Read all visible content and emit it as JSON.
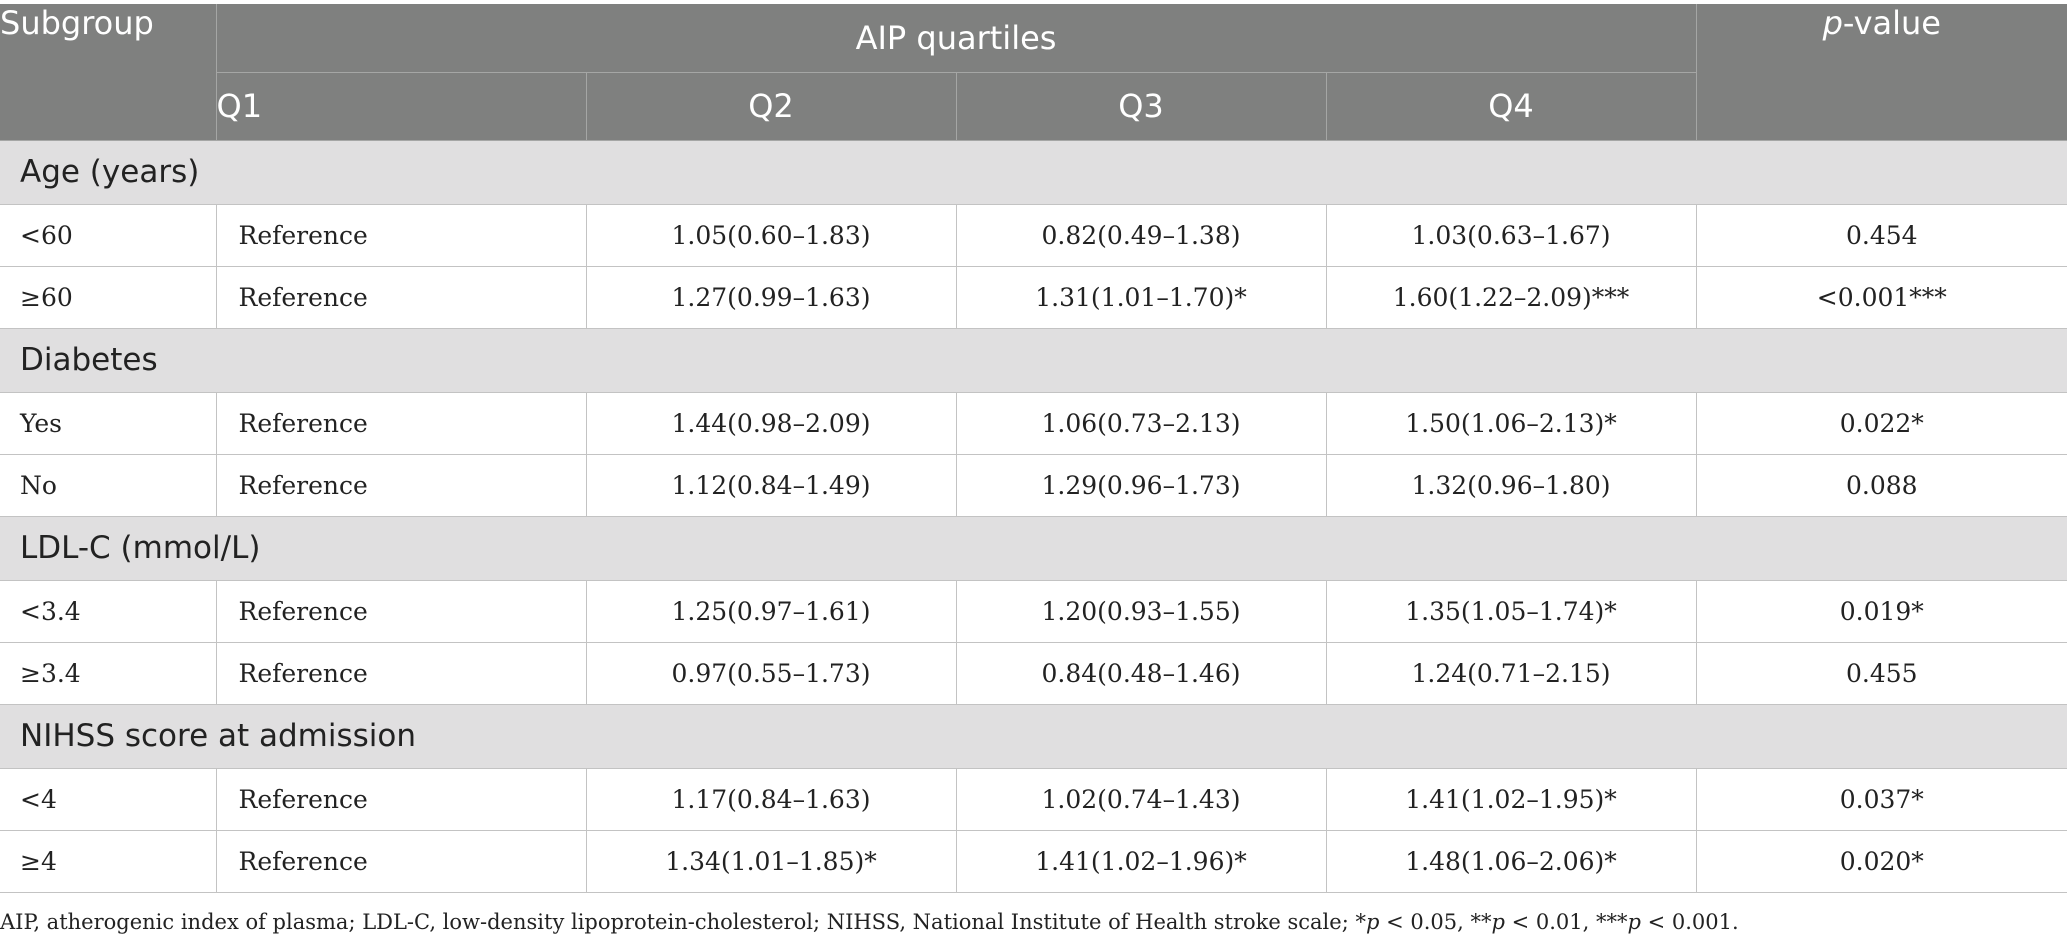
{
  "header": {
    "subgroup": "Subgroup",
    "quartiles": "AIP quartiles",
    "p_prefix": "p",
    "p_suffix": "-value",
    "q1": "Q1",
    "q2": "Q2",
    "q3": "Q3",
    "q4": "Q4"
  },
  "groups": [
    {
      "title": "Age (years)",
      "rows": [
        {
          "label": "<60",
          "q1": "Reference",
          "q2": "1.05(0.60–1.83)",
          "q3": "0.82(0.49–1.38)",
          "q4": "1.03(0.63–1.67)",
          "p": "0.454"
        },
        {
          "label": "≥60",
          "q1": "Reference",
          "q2": "1.27(0.99–1.63)",
          "q3": "1.31(1.01–1.70)*",
          "q4": "1.60(1.22–2.09)***",
          "p": "<0.001***"
        }
      ]
    },
    {
      "title": "Diabetes",
      "rows": [
        {
          "label": "Yes",
          "q1": "Reference",
          "q2": "1.44(0.98–2.09)",
          "q3": "1.06(0.73–2.13)",
          "q4": "1.50(1.06–2.13)*",
          "p": "0.022*"
        },
        {
          "label": "No",
          "q1": "Reference",
          "q2": "1.12(0.84–1.49)",
          "q3": "1.29(0.96–1.73)",
          "q4": "1.32(0.96–1.80)",
          "p": "0.088"
        }
      ]
    },
    {
      "title": "LDL-C (mmol/L)",
      "rows": [
        {
          "label": "<3.4",
          "q1": "Reference",
          "q2": "1.25(0.97–1.61)",
          "q3": "1.20(0.93–1.55)",
          "q4": "1.35(1.05–1.74)*",
          "p": "0.019*"
        },
        {
          "label": "≥3.4",
          "q1": "Reference",
          "q2": "0.97(0.55–1.73)",
          "q3": "0.84(0.48–1.46)",
          "q4": "1.24(0.71–2.15)",
          "p": "0.455"
        }
      ]
    },
    {
      "title": "NIHSS score at admission",
      "rows": [
        {
          "label": "<4",
          "q1": "Reference",
          "q2": "1.17(0.84–1.63)",
          "q3": "1.02(0.74–1.43)",
          "q4": "1.41(1.02–1.95)*",
          "p": "0.037*"
        },
        {
          "label": "≥4",
          "q1": "Reference",
          "q2": "1.34(1.01–1.85)*",
          "q3": "1.41(1.02–1.96)*",
          "q4": "1.48(1.06–2.06)*",
          "p": "0.020*"
        }
      ]
    }
  ],
  "footnote": {
    "text": "AIP, atherogenic index of plasma; LDL-C, low-density lipoprotein-cholesterol; NIHSS, National Institute of Health stroke scale; ",
    "s1_star": "*",
    "s1_p": "p",
    "s1_rest": " < 0.05, ",
    "s2_star": "**",
    "s2_p": "p",
    "s2_rest": " < 0.01, ",
    "s3_star": "***",
    "s3_p": "p",
    "s3_rest": " < 0.001."
  }
}
